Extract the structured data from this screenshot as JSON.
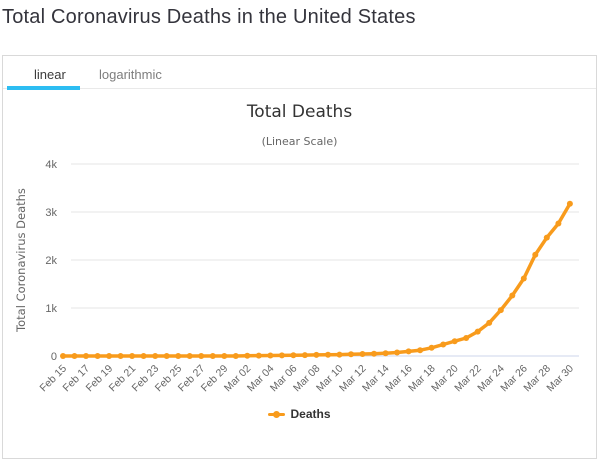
{
  "page": {
    "title": "Total Coronavirus Deaths in the United States"
  },
  "tabs": [
    {
      "label": "linear",
      "active": true
    },
    {
      "label": "logarithmic",
      "active": false
    }
  ],
  "colors": {
    "series": "#f89b1c",
    "tab_accent": "#2dbdf2",
    "grid": "#e6e6e6",
    "axis_line": "#ccd6eb",
    "tick_text": "#666666",
    "title_text": "#333333"
  },
  "chart_data": {
    "type": "line",
    "title": "Total Deaths",
    "subtitle": "(Linear Scale)",
    "xlabel": "",
    "ylabel": "Total Coronavirus Deaths",
    "ylim": [
      0,
      4000
    ],
    "ytick_labels": [
      "0",
      "1k",
      "2k",
      "3k",
      "4k"
    ],
    "ytick_values": [
      0,
      1000,
      2000,
      3000,
      4000
    ],
    "xtick_every": 2,
    "grid": true,
    "legend_position": "bottom",
    "categories": [
      "Feb 15",
      "Feb 16",
      "Feb 17",
      "Feb 18",
      "Feb 19",
      "Feb 20",
      "Feb 21",
      "Feb 22",
      "Feb 23",
      "Feb 24",
      "Feb 25",
      "Feb 26",
      "Feb 27",
      "Feb 28",
      "Feb 29",
      "Mar 01",
      "Mar 02",
      "Mar 03",
      "Mar 04",
      "Mar 05",
      "Mar 06",
      "Mar 07",
      "Mar 08",
      "Mar 09",
      "Mar 10",
      "Mar 11",
      "Mar 12",
      "Mar 13",
      "Mar 14",
      "Mar 15",
      "Mar 16",
      "Mar 17",
      "Mar 18",
      "Mar 19",
      "Mar 20",
      "Mar 21",
      "Mar 22",
      "Mar 23",
      "Mar 24",
      "Mar 25",
      "Mar 26",
      "Mar 27",
      "Mar 28",
      "Mar 29",
      "Mar 30"
    ],
    "series": [
      {
        "name": "Deaths",
        "color": "#f89b1c",
        "values": [
          0,
          0,
          0,
          0,
          0,
          0,
          0,
          0,
          0,
          0,
          0,
          0,
          0,
          0,
          1,
          1,
          6,
          9,
          11,
          12,
          15,
          19,
          22,
          26,
          30,
          38,
          41,
          48,
          58,
          73,
          95,
          121,
          171,
          239,
          309,
          374,
          509,
          689,
          957,
          1260,
          1614,
          2110,
          2467,
          2760,
          3170
        ]
      }
    ]
  }
}
